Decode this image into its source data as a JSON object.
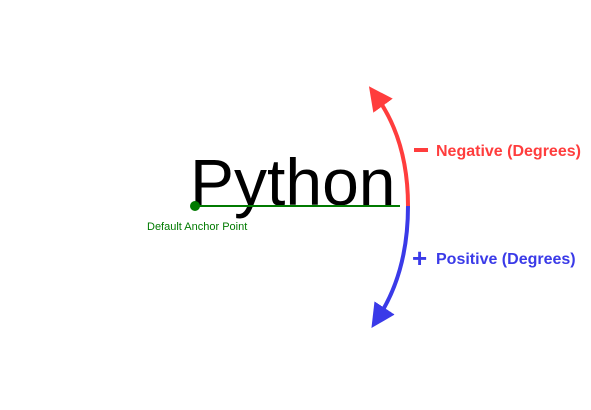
{
  "word": "Python",
  "anchor_label": "Default  Anchor Point",
  "negative": {
    "sign": "—",
    "label": "Negative (Degrees)"
  },
  "positive": {
    "sign": "+",
    "label": "Positive (Degrees)"
  },
  "colors": {
    "text": "#000000",
    "anchor": "#007a00",
    "negative": "#ff3d3d",
    "positive": "#3a3ae8"
  }
}
